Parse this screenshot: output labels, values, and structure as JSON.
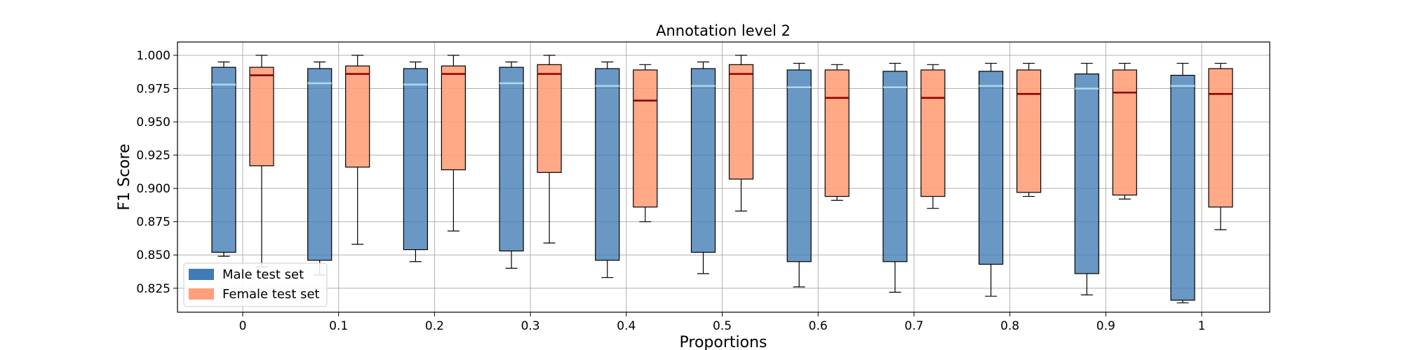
{
  "chart_data": {
    "type": "box",
    "title": "Annotation level 2",
    "xlabel": "Proportions",
    "ylabel": "F1 Score",
    "categories": [
      "0",
      "0.1",
      "0.2",
      "0.3",
      "0.4",
      "0.5",
      "0.6",
      "0.7",
      "0.8",
      "0.9",
      "1"
    ],
    "ylim": [
      0.807,
      1.01
    ],
    "yticks": [
      "0.825",
      "0.850",
      "0.875",
      "0.900",
      "0.925",
      "0.950",
      "0.975",
      "1.000"
    ],
    "grid": true,
    "legend_position": "bottom-left",
    "series": [
      {
        "name": "Male test set",
        "color": "#3f7bb5",
        "median_color": "#add8e6",
        "boxes": [
          {
            "whislo": 0.849,
            "q1": 0.852,
            "med": 0.978,
            "q3": 0.991,
            "whishi": 0.995
          },
          {
            "whislo": 0.835,
            "q1": 0.846,
            "med": 0.979,
            "q3": 0.99,
            "whishi": 0.995
          },
          {
            "whislo": 0.845,
            "q1": 0.854,
            "med": 0.978,
            "q3": 0.99,
            "whishi": 0.995
          },
          {
            "whislo": 0.84,
            "q1": 0.853,
            "med": 0.979,
            "q3": 0.991,
            "whishi": 0.995
          },
          {
            "whislo": 0.833,
            "q1": 0.846,
            "med": 0.977,
            "q3": 0.99,
            "whishi": 0.995
          },
          {
            "whislo": 0.836,
            "q1": 0.852,
            "med": 0.977,
            "q3": 0.99,
            "whishi": 0.995
          },
          {
            "whislo": 0.826,
            "q1": 0.845,
            "med": 0.976,
            "q3": 0.989,
            "whishi": 0.994
          },
          {
            "whislo": 0.822,
            "q1": 0.845,
            "med": 0.976,
            "q3": 0.988,
            "whishi": 0.994
          },
          {
            "whislo": 0.819,
            "q1": 0.843,
            "med": 0.977,
            "q3": 0.988,
            "whishi": 0.994
          },
          {
            "whislo": 0.82,
            "q1": 0.836,
            "med": 0.975,
            "q3": 0.986,
            "whishi": 0.994
          },
          {
            "whislo": 0.814,
            "q1": 0.816,
            "med": 0.977,
            "q3": 0.985,
            "whishi": 0.994
          }
        ]
      },
      {
        "name": "Female test set",
        "color": "#ffa07a",
        "median_color": "#8b0000",
        "boxes": [
          {
            "whislo": 0.841,
            "q1": 0.917,
            "med": 0.985,
            "q3": 0.991,
            "whishi": 1.0
          },
          {
            "whislo": 0.858,
            "q1": 0.916,
            "med": 0.986,
            "q3": 0.992,
            "whishi": 1.0
          },
          {
            "whislo": 0.868,
            "q1": 0.914,
            "med": 0.986,
            "q3": 0.992,
            "whishi": 1.0
          },
          {
            "whislo": 0.859,
            "q1": 0.912,
            "med": 0.986,
            "q3": 0.993,
            "whishi": 1.0
          },
          {
            "whislo": 0.875,
            "q1": 0.886,
            "med": 0.966,
            "q3": 0.989,
            "whishi": 0.993
          },
          {
            "whislo": 0.883,
            "q1": 0.907,
            "med": 0.986,
            "q3": 0.993,
            "whishi": 1.0
          },
          {
            "whislo": 0.891,
            "q1": 0.894,
            "med": 0.968,
            "q3": 0.989,
            "whishi": 0.993
          },
          {
            "whislo": 0.885,
            "q1": 0.894,
            "med": 0.968,
            "q3": 0.989,
            "whishi": 0.993
          },
          {
            "whislo": 0.894,
            "q1": 0.897,
            "med": 0.971,
            "q3": 0.989,
            "whishi": 0.994
          },
          {
            "whislo": 0.892,
            "q1": 0.895,
            "med": 0.972,
            "q3": 0.989,
            "whishi": 0.994
          },
          {
            "whislo": 0.869,
            "q1": 0.886,
            "med": 0.971,
            "q3": 0.99,
            "whishi": 0.994
          }
        ]
      }
    ]
  }
}
